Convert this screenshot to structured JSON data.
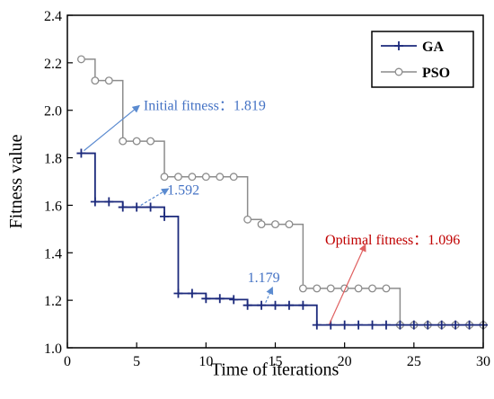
{
  "chart_data": {
    "type": "line",
    "title": "",
    "xlabel": "Time of iterations",
    "ylabel": "Fitness value",
    "xlim": [
      0,
      30
    ],
    "ylim": [
      1.0,
      2.4
    ],
    "xticks": [
      0,
      5,
      10,
      15,
      20,
      25,
      30
    ],
    "yticks": [
      1.0,
      1.2,
      1.4,
      1.6,
      1.8,
      2.0,
      2.2,
      2.4
    ],
    "grid": false,
    "legend_position": "top-right",
    "series": [
      {
        "name": "GA",
        "color": "#1c2a7c",
        "marker": "plus",
        "style": "step",
        "x": [
          1,
          2,
          3,
          4,
          5,
          6,
          7,
          8,
          9,
          10,
          11,
          12,
          13,
          14,
          15,
          16,
          17,
          18,
          19,
          20,
          21,
          22,
          23,
          24,
          25,
          26,
          27,
          28,
          29,
          30
        ],
        "values": [
          1.819,
          1.615,
          1.615,
          1.592,
          1.592,
          1.592,
          1.553,
          1.229,
          1.229,
          1.207,
          1.207,
          1.203,
          1.179,
          1.179,
          1.179,
          1.179,
          1.179,
          1.096,
          1.096,
          1.096,
          1.096,
          1.096,
          1.096,
          1.096,
          1.096,
          1.096,
          1.096,
          1.096,
          1.096,
          1.096
        ]
      },
      {
        "name": "PSO",
        "color": "#8c8c8c",
        "marker": "circle",
        "style": "step",
        "x": [
          1,
          2,
          3,
          4,
          5,
          6,
          7,
          8,
          9,
          10,
          11,
          12,
          13,
          14,
          15,
          16,
          17,
          18,
          19,
          20,
          21,
          22,
          23,
          24,
          25,
          26,
          27,
          28,
          29,
          30
        ],
        "values": [
          2.215,
          2.125,
          2.125,
          1.87,
          1.87,
          1.87,
          1.72,
          1.72,
          1.72,
          1.72,
          1.72,
          1.72,
          1.54,
          1.52,
          1.52,
          1.52,
          1.25,
          1.25,
          1.25,
          1.25,
          1.25,
          1.25,
          1.25,
          1.096,
          1.096,
          1.096,
          1.096,
          1.096,
          1.096,
          1.096
        ]
      }
    ],
    "annotations": [
      {
        "text": "Initial fitness：1.819",
        "color": "#4472c4",
        "arrow_color": "#5b8bd0",
        "arrow_style": "solid",
        "from": [
          1.2,
          1.83
        ],
        "to": [
          5.2,
          2.02
        ],
        "text_at": [
          5.5,
          2.02
        ]
      },
      {
        "text": "1.592",
        "color": "#4472c4",
        "arrow_color": "#5b8bd0",
        "arrow_style": "dashed",
        "from": [
          5.3,
          1.6
        ],
        "to": [
          7.3,
          1.67
        ],
        "text_at": [
          7.2,
          1.665
        ]
      },
      {
        "text": "1.179",
        "color": "#4472c4",
        "arrow_color": "#5b8bd0",
        "arrow_style": "dashed",
        "from": [
          14.3,
          1.19
        ],
        "to": [
          14.8,
          1.255
        ],
        "text_at": [
          13.0,
          1.295
        ]
      },
      {
        "text": "Optimal fitness：1.096",
        "color": "#c00000",
        "arrow_color": "#e06060",
        "arrow_style": "solid",
        "from": [
          18.9,
          1.1
        ],
        "to": [
          21.5,
          1.435
        ],
        "text_at": [
          18.6,
          1.455
        ]
      }
    ]
  }
}
